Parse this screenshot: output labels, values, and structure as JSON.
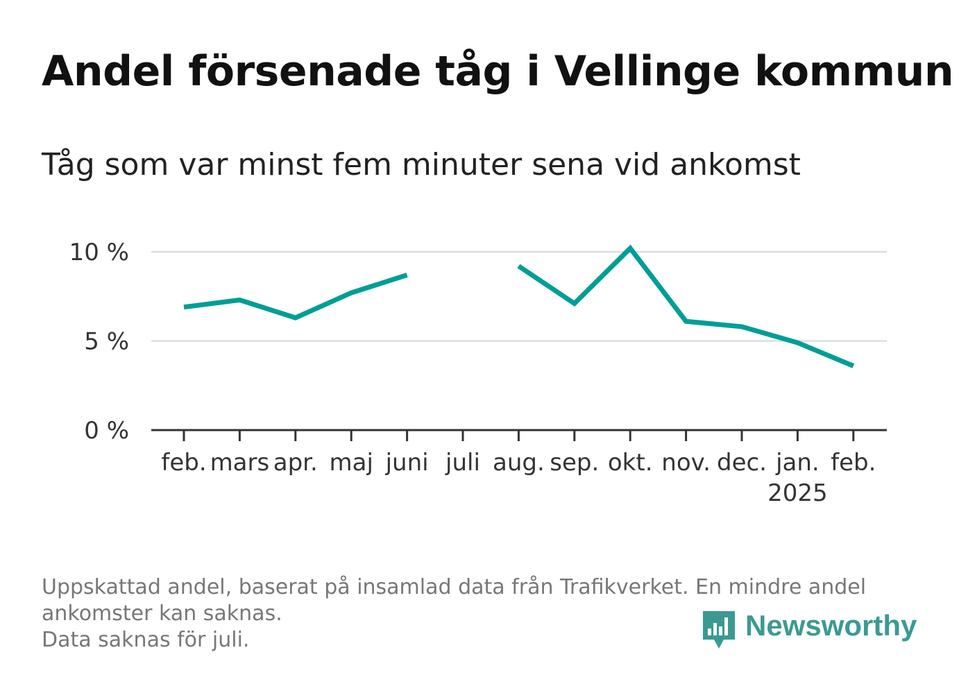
{
  "title": "Andel försenade tåg i Vellinge kommun",
  "subtitle": "Tåg som var minst fem minuter sena vid ankomst",
  "footnote": {
    "line1": "Uppskattad andel, baserat på insamlad data från Trafikverket. En mindre andel",
    "line2": "ankomster kan saknas.",
    "line3": "Data saknas för juli."
  },
  "brand": {
    "name": "Newsworthy",
    "color": "#3a9a92",
    "icon": "bar-chart-speech-bubble-icon"
  },
  "chart_data": {
    "type": "line",
    "categories": [
      "feb.",
      "mars",
      "apr.",
      "maj",
      "juni",
      "juli",
      "aug.",
      "sep.",
      "okt.",
      "nov.",
      "dec.",
      "jan.",
      "feb."
    ],
    "year_labels": [
      "",
      "",
      "",
      "",
      "",
      "",
      "",
      "",
      "",
      "",
      "",
      "2025",
      ""
    ],
    "series": [
      {
        "values": [
          6.9,
          7.3,
          6.3,
          7.7,
          8.7,
          null,
          9.2,
          7.1,
          10.2,
          6.1,
          5.8,
          4.9,
          3.6
        ],
        "color": "#009e96"
      }
    ],
    "y_ticks": [
      {
        "value": 0,
        "label": "0 %"
      },
      {
        "value": 5,
        "label": "5 %"
      },
      {
        "value": 10,
        "label": "10 %"
      }
    ],
    "ylim": [
      0,
      10.5
    ],
    "grid": true
  }
}
